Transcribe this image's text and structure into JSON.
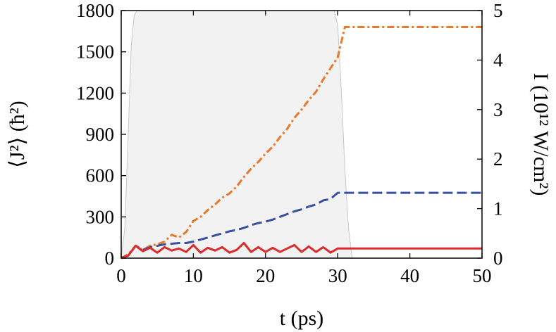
{
  "chart_data": {
    "type": "line",
    "title": "",
    "xlabel": "t (ps)",
    "ylabel": "⟨J²⟩ (ħ²)",
    "y2label": "I (10¹² W/cm²)",
    "xlim": [
      0,
      50
    ],
    "ylim": [
      0,
      1800
    ],
    "y2lim": [
      0,
      5
    ],
    "grid": false,
    "legend": "none",
    "x_ticks": [
      "0",
      "10",
      "20",
      "30",
      "40",
      "50"
    ],
    "y_ticks": [
      "0",
      "300",
      "600",
      "900",
      "1200",
      "1500",
      "1800"
    ],
    "y2_ticks": [
      "0",
      "1",
      "2",
      "3",
      "4",
      "5"
    ],
    "series": [
      {
        "axis": "y2",
        "style": "filled-area",
        "color": "#f2f2f2",
        "x": [
          0,
          0.5,
          1.0,
          1.4,
          1.8,
          2.2,
          29.5,
          30.0,
          30.5,
          31.0,
          31.5,
          32.0,
          50
        ],
        "values": [
          0,
          0.6,
          2.6,
          4.3,
          4.9,
          5.0,
          5.0,
          4.7,
          3.4,
          1.8,
          0.6,
          0,
          0
        ]
      },
      {
        "axis": "y",
        "style": "dash-dot",
        "color": "#e8782a",
        "x": [
          0,
          1,
          2,
          3,
          4,
          5,
          6,
          7,
          8,
          9,
          10,
          11,
          12,
          13,
          14,
          15,
          16,
          17,
          18,
          19,
          20,
          21,
          22,
          23,
          24,
          25,
          26,
          27,
          28,
          29,
          30,
          31,
          50
        ],
        "values": [
          0,
          30,
          90,
          60,
          90,
          100,
          120,
          170,
          150,
          190,
          270,
          300,
          350,
          390,
          440,
          470,
          520,
          590,
          650,
          700,
          760,
          810,
          880,
          940,
          1020,
          1080,
          1150,
          1210,
          1300,
          1380,
          1460,
          1680,
          1680
        ]
      },
      {
        "axis": "y",
        "style": "dashed",
        "color": "#3a4fa0",
        "x": [
          0,
          1,
          2,
          3,
          4,
          5,
          6,
          7,
          8,
          9,
          10,
          11,
          12,
          13,
          14,
          15,
          16,
          17,
          18,
          19,
          20,
          21,
          22,
          23,
          24,
          25,
          26,
          27,
          28,
          29,
          30,
          31,
          50
        ],
        "values": [
          0,
          20,
          90,
          60,
          80,
          90,
          100,
          105,
          110,
          110,
          120,
          135,
          150,
          165,
          180,
          195,
          205,
          220,
          240,
          255,
          265,
          280,
          300,
          320,
          340,
          355,
          375,
          390,
          420,
          430,
          475,
          475,
          475
        ]
      },
      {
        "axis": "y",
        "style": "solid",
        "color": "#dd2a2a",
        "x": [
          0,
          1,
          2,
          3,
          4,
          5,
          6,
          7,
          8,
          9,
          10,
          11,
          12,
          13,
          14,
          15,
          16,
          17,
          18,
          19,
          20,
          21,
          22,
          23,
          24,
          25,
          26,
          27,
          28,
          29,
          30,
          31,
          50
        ],
        "values": [
          0,
          20,
          90,
          50,
          75,
          40,
          80,
          55,
          70,
          45,
          95,
          40,
          75,
          55,
          80,
          40,
          60,
          110,
          45,
          80,
          45,
          75,
          45,
          70,
          95,
          45,
          85,
          45,
          80,
          40,
          70,
          70,
          70
        ]
      }
    ]
  }
}
